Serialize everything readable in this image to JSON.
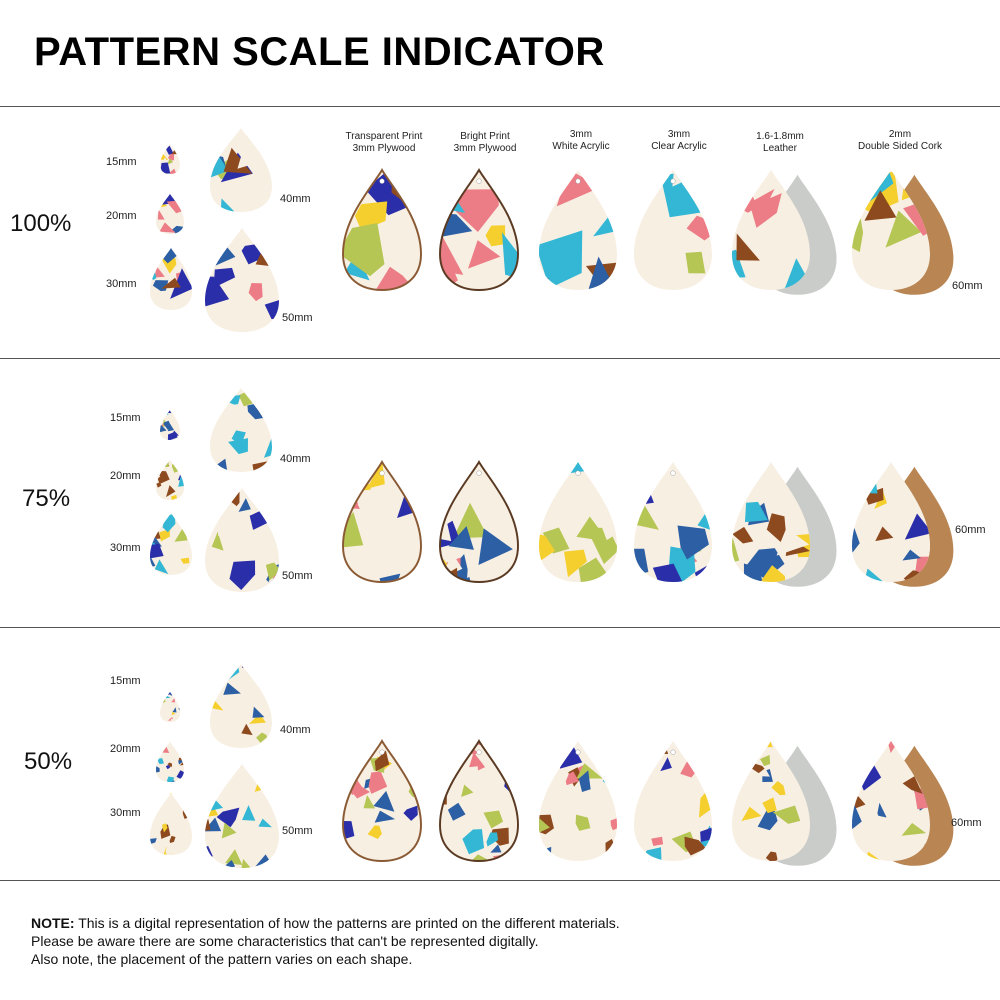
{
  "title": "PATTERN SCALE INDICATOR",
  "materials": [
    {
      "line1": "Transparent Print",
      "line2": "3mm Plywood"
    },
    {
      "line1": "Bright Print",
      "line2": "3mm Plywood"
    },
    {
      "line1": "3mm",
      "line2": "White Acrylic"
    },
    {
      "line1": "3mm",
      "line2": "Clear Acrylic"
    },
    {
      "line1": "1.6-1.8mm",
      "line2": "Leather"
    },
    {
      "line1": "2mm",
      "line2": "Double Sided Cork"
    }
  ],
  "sections": [
    {
      "scale": "100%",
      "sizes": [
        "15mm",
        "20mm",
        "30mm",
        "40mm",
        "50mm"
      ],
      "large_size": "60mm"
    },
    {
      "scale": "75%",
      "sizes": [
        "15mm",
        "20mm",
        "30mm",
        "40mm",
        "50mm"
      ],
      "large_size": "60mm"
    },
    {
      "scale": "50%",
      "sizes": [
        "15mm",
        "20mm",
        "30mm",
        "40mm",
        "50mm"
      ],
      "large_size": "60mm"
    }
  ],
  "note": {
    "label": "NOTE:",
    "line1": " This is a digital representation of how the patterns are printed on the different materials.",
    "line2": "Please be aware there are some characteristics that can't be represented digitally.",
    "line3": "Also note, the placement of the pattern varies on each shape."
  },
  "palette": {
    "turquoise": "#33b7d4",
    "pink": "#ec7d86",
    "lime": "#b6c655",
    "yellow": "#f4cf2e",
    "blue": "#2c5fa3",
    "navy": "#2a2ea8",
    "brown": "#8d4a1f",
    "cream": "#f8efe3",
    "leather_back": "#c9ccc8",
    "cork_back": "#b88553"
  }
}
